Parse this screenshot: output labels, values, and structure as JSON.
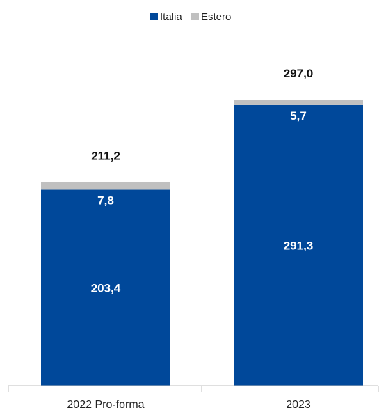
{
  "chart_data": {
    "type": "bar",
    "stacked": true,
    "categories": [
      "2022 Pro-forma",
      "2023"
    ],
    "series": [
      {
        "name": "Italia",
        "values": [
          203.4,
          291.3
        ],
        "labels": [
          "203,4",
          "291,3"
        ],
        "color": "#00489A"
      },
      {
        "name": "Estero",
        "values": [
          7.8,
          5.7
        ],
        "labels": [
          "7,8",
          "5,7"
        ],
        "color": "#C0C0C0"
      }
    ],
    "totals": [
      211.2,
      297.0
    ],
    "total_labels": [
      "211,2",
      "297,0"
    ],
    "legend_position": "top-center",
    "grid": false,
    "ylim": [
      0,
      297.0
    ]
  }
}
